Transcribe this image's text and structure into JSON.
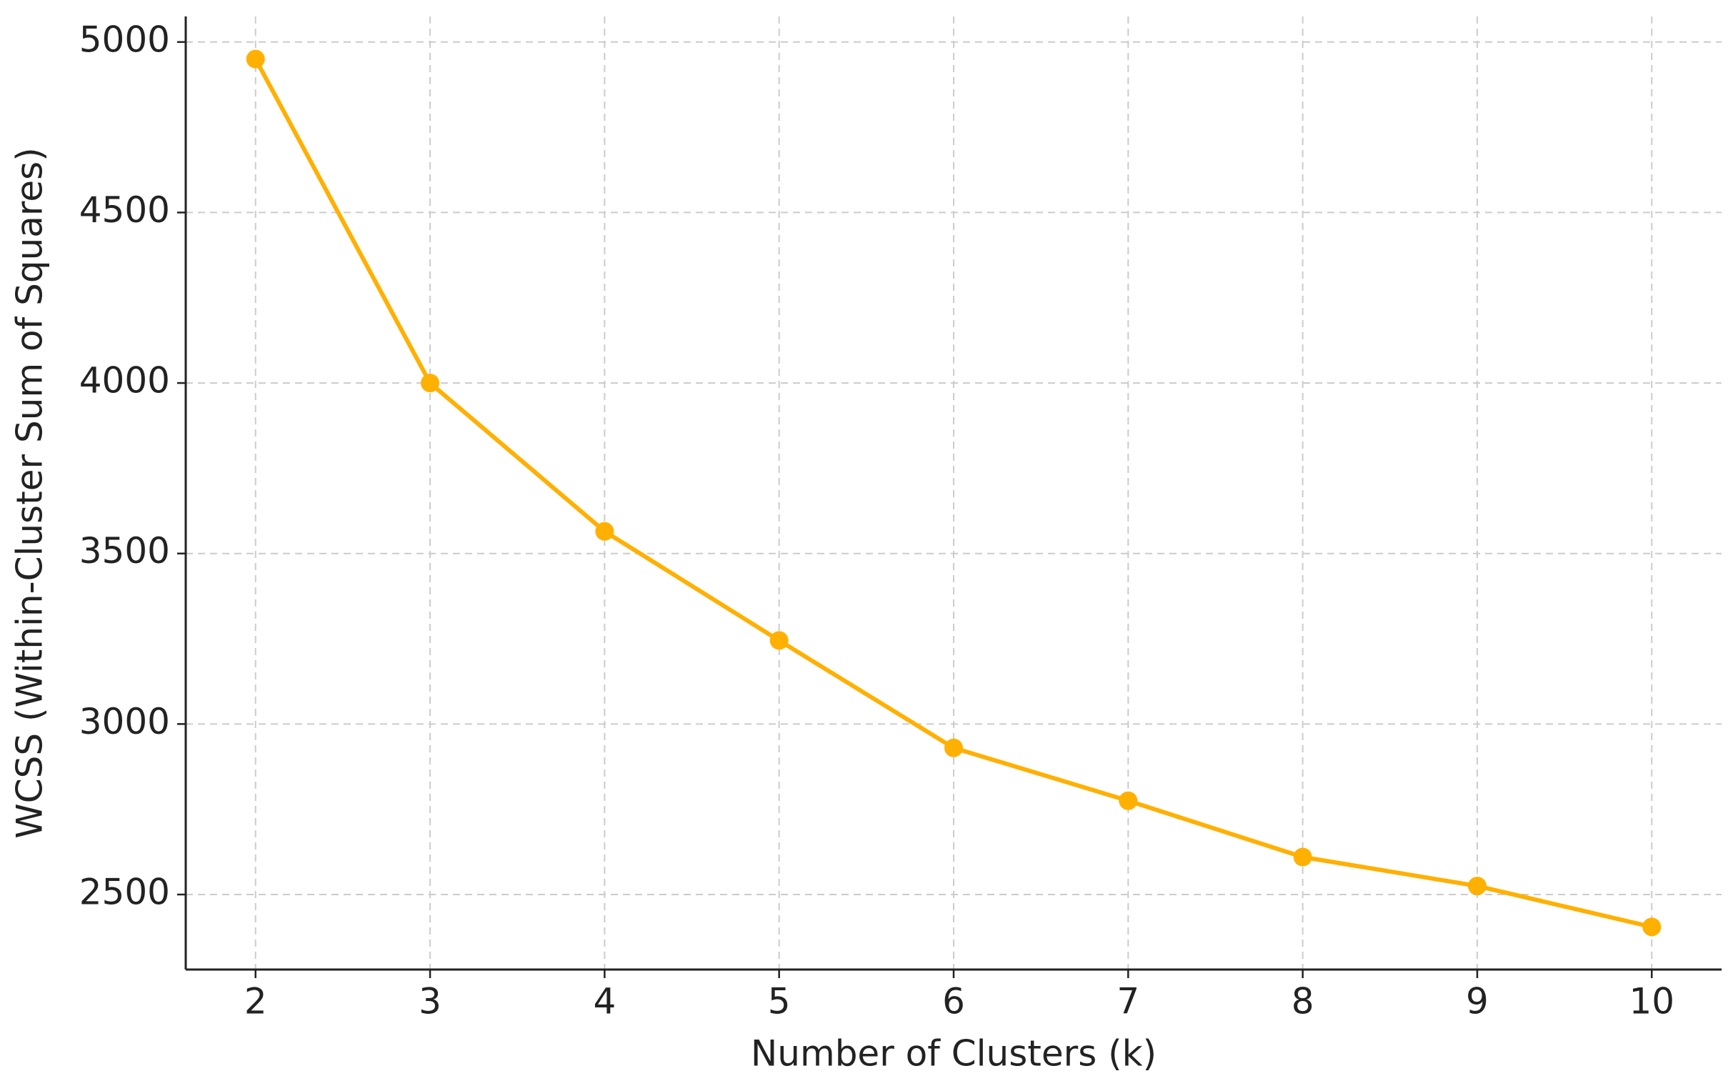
{
  "chart_data": {
    "type": "line",
    "x_label": "Number of Clusters (k)",
    "y_label": "WCSS (Within-Cluster Sum of Squares)",
    "x": [
      2,
      3,
      4,
      5,
      6,
      7,
      8,
      9,
      10
    ],
    "series": [
      {
        "name": "WCSS",
        "color": "#ffb000",
        "values": [
          4950,
          4000,
          3565,
          3245,
          2930,
          2775,
          2610,
          2525,
          2405
        ]
      }
    ],
    "xlim": [
      1.6,
      10.4
    ],
    "xticks": [
      2,
      3,
      4,
      5,
      6,
      7,
      8,
      9,
      10
    ],
    "ylim": [
      2280,
      5075
    ],
    "yticks": [
      2500,
      3000,
      3500,
      4000,
      4500,
      5000
    ],
    "grid": true
  }
}
